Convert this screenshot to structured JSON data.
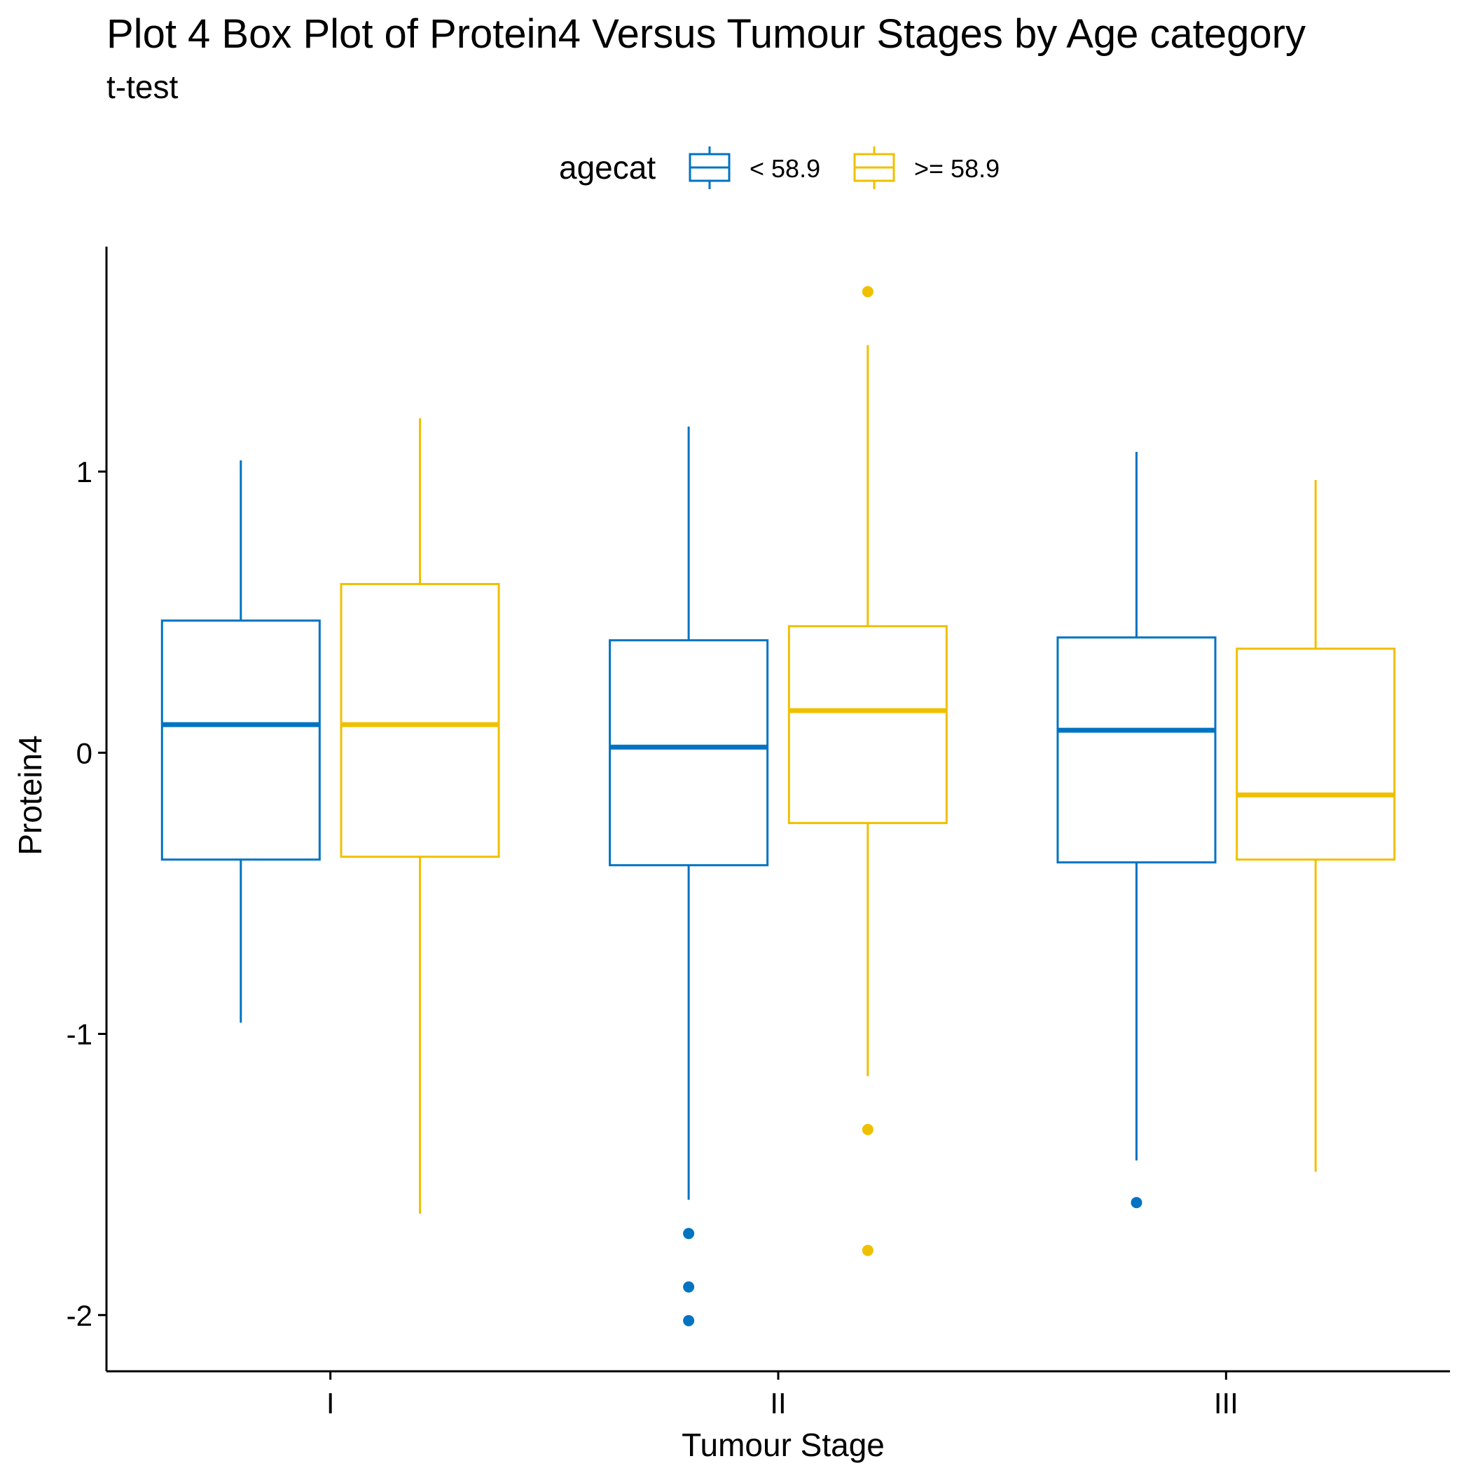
{
  "chart_data": {
    "type": "box",
    "title": "Plot 4  Box Plot of Protein4 Versus Tumour Stages by Age category",
    "subtitle": "t-test",
    "xlabel": "Tumour Stage",
    "ylabel": "Protein4",
    "categories": [
      "I",
      "II",
      "III"
    ],
    "ylim": [
      -2.2,
      1.8
    ],
    "yticks": [
      -2,
      -1,
      0,
      1
    ],
    "yticklabels": [
      "-2",
      "-1",
      "0",
      "1"
    ],
    "grid": false,
    "legend": {
      "title": "agecat",
      "position": "top"
    },
    "series": [
      {
        "name": "< 58.9",
        "color": "#0073C2",
        "boxes": [
          {
            "category": "I",
            "whisker_low": -0.96,
            "q1": -0.38,
            "median": 0.1,
            "q3": 0.47,
            "whisker_high": 1.04,
            "outliers": []
          },
          {
            "category": "II",
            "whisker_low": -1.59,
            "q1": -0.4,
            "median": 0.02,
            "q3": 0.4,
            "whisker_high": 1.16,
            "outliers": [
              -1.71,
              -1.9,
              -2.02
            ]
          },
          {
            "category": "III",
            "whisker_low": -1.45,
            "q1": -0.39,
            "median": 0.08,
            "q3": 0.41,
            "whisker_high": 1.07,
            "outliers": [
              -1.6
            ]
          }
        ]
      },
      {
        "name": ">= 58.9",
        "color": "#EFC000",
        "boxes": [
          {
            "category": "I",
            "whisker_low": -1.64,
            "q1": -0.37,
            "median": 0.1,
            "q3": 0.6,
            "whisker_high": 1.19,
            "outliers": []
          },
          {
            "category": "II",
            "whisker_low": -1.15,
            "q1": -0.25,
            "median": 0.15,
            "q3": 0.45,
            "whisker_high": 1.45,
            "outliers": [
              1.64,
              -1.34,
              -1.77
            ]
          },
          {
            "category": "III",
            "whisker_low": -1.49,
            "q1": -0.38,
            "median": -0.15,
            "q3": 0.37,
            "whisker_high": 0.97,
            "outliers": []
          }
        ]
      }
    ]
  }
}
